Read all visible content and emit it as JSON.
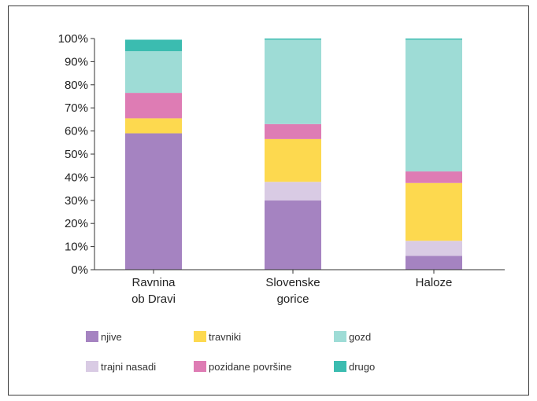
{
  "chart_data": {
    "type": "bar",
    "stacked": true,
    "percent": true,
    "categories": [
      "Ravnina ob Dravi",
      "Slovenske gorice",
      "Haloze"
    ],
    "category_lines": [
      [
        "Ravnina",
        "ob Dravi"
      ],
      [
        "Slovenske",
        "gorice"
      ],
      [
        "Haloze"
      ]
    ],
    "ylim": [
      0,
      100
    ],
    "yticks": [
      "0%",
      "10%",
      "20%",
      "30%",
      "40%",
      "50%",
      "60%",
      "70%",
      "80%",
      "90%",
      "100%"
    ],
    "grid": false,
    "legend_position": "bottom",
    "series": [
      {
        "name": "njive",
        "color": "#a583c1",
        "values": [
          59,
          30,
          6
        ]
      },
      {
        "name": "trajni nasadi",
        "color": "#d9cbe4",
        "values": [
          0,
          8,
          6.5
        ]
      },
      {
        "name": "travniki",
        "color": "#fdd94f",
        "values": [
          6.5,
          18.5,
          25
        ]
      },
      {
        "name": "pozidane površine",
        "color": "#de7cb4",
        "values": [
          11,
          6.5,
          5
        ]
      },
      {
        "name": "gozd",
        "color": "#9edcd6",
        "values": [
          18,
          36.5,
          57
        ]
      },
      {
        "name": "drugo",
        "color": "#3bbcb0",
        "values": [
          5,
          0.5,
          0.5
        ]
      }
    ],
    "legend_order": [
      "njive",
      "travniki",
      "gozd",
      "trajni nasadi",
      "pozidane površine",
      "drugo"
    ]
  }
}
